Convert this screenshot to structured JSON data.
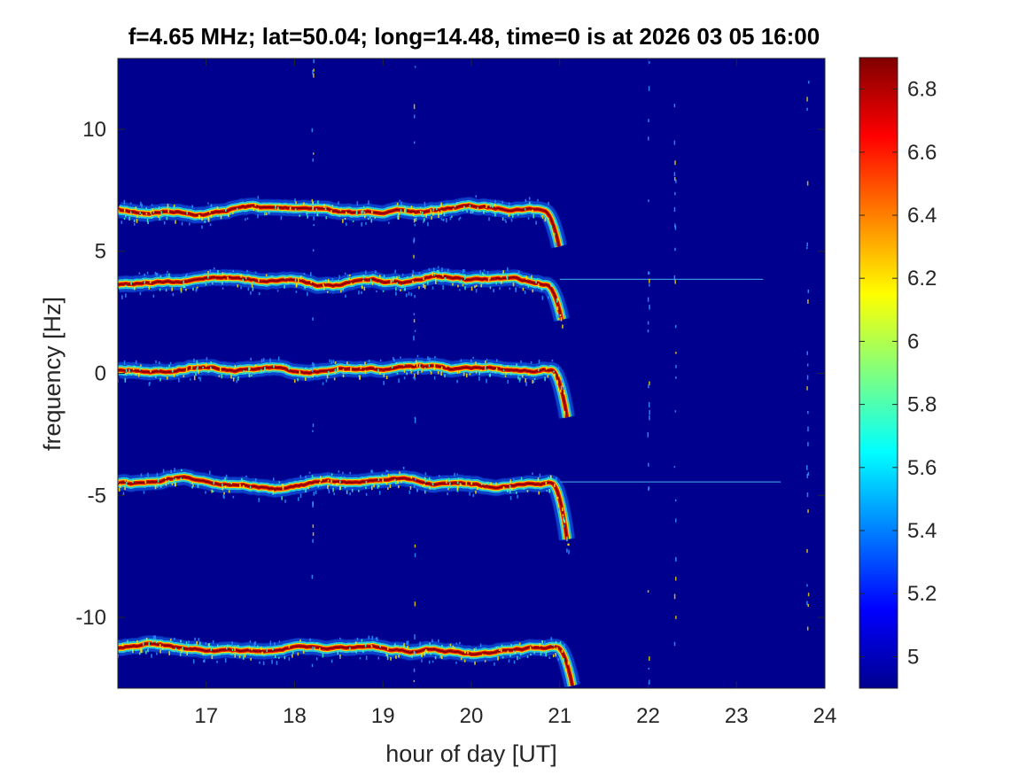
{
  "chart_data": {
    "type": "heatmap",
    "title": "f=4.65 MHz;  lat=50.04; long=14.48, time=0 is at 2026 03 05 16:00",
    "xlabel": "hour of day [UT]",
    "ylabel": "frequency [Hz]",
    "xlim": [
      16,
      24
    ],
    "ylim": [
      -12.9,
      12.9
    ],
    "x_ticks": [
      17,
      18,
      19,
      20,
      21,
      22,
      23,
      24
    ],
    "x_tick_labels": [
      "17",
      "18",
      "19",
      "20",
      "21",
      "22",
      "23",
      "24"
    ],
    "y_ticks": [
      10,
      5,
      0,
      -5,
      -10
    ],
    "y_tick_labels": [
      "10",
      "5",
      "0",
      "-5",
      "-10"
    ],
    "colorbar": {
      "colormap": "jet",
      "clim": [
        4.9,
        6.9
      ],
      "ticks": [
        6.8,
        6.6,
        6.4,
        6.2,
        6,
        5.8,
        5.6,
        5.4,
        5.2,
        5
      ],
      "tick_labels": [
        "6.8",
        "6.6",
        "6.4",
        "6.2",
        "6",
        "5.8",
        "5.6",
        "5.4",
        "5.2",
        "5"
      ]
    },
    "background_value": 4.95,
    "traces": [
      {
        "center_hz": 6.7,
        "end_hour": 21.0,
        "end_hz": 5.2
      },
      {
        "center_hz": 3.8,
        "end_hour": 21.05,
        "end_hz": 2.2
      },
      {
        "center_hz": 0.15,
        "end_hour": 21.1,
        "end_hz": -1.8
      },
      {
        "center_hz": -4.5,
        "end_hour": 21.1,
        "end_hz": -6.8
      },
      {
        "center_hz": -11.3,
        "end_hour": 21.15,
        "end_hz": -12.8
      }
    ],
    "faint_lines": [
      {
        "hz": 3.85,
        "start_hour": 21.0,
        "end_hour": 23.3
      },
      {
        "hz": -4.45,
        "start_hour": 21.0,
        "end_hour": 23.5
      }
    ]
  },
  "colors": {
    "background_blue": "#00008f",
    "text": "#262626"
  }
}
